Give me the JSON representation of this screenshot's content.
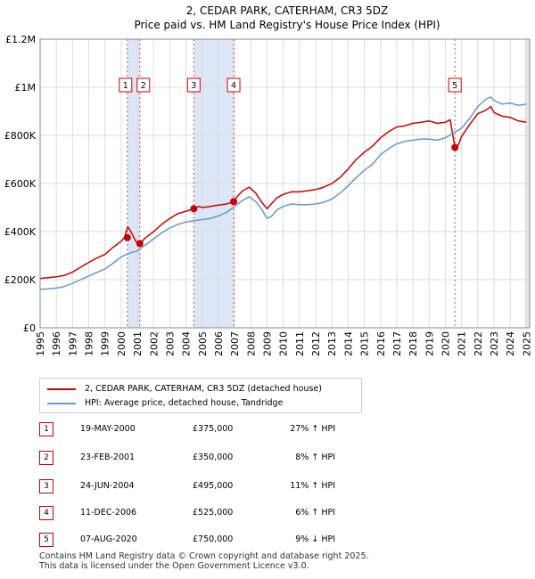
{
  "chart_data": {
    "type": "line",
    "title": "2, CEDAR PARK, CATERHAM, CR3 5DZ",
    "subtitle": "Price paid vs. HM Land Registry's House Price Index (HPI)",
    "xlim": [
      1995,
      2025.2
    ],
    "ylim": [
      0,
      1200000
    ],
    "x_ticks": [
      1995,
      1996,
      1997,
      1998,
      1999,
      2000,
      2001,
      2002,
      2003,
      2004,
      2005,
      2006,
      2007,
      2008,
      2009,
      2010,
      2011,
      2012,
      2013,
      2014,
      2015,
      2016,
      2017,
      2018,
      2019,
      2020,
      2021,
      2022,
      2023,
      2024,
      2025
    ],
    "y_ticks": [
      {
        "value": 0,
        "label": "£0"
      },
      {
        "value": 200000,
        "label": "£200K"
      },
      {
        "value": 400000,
        "label": "£400K"
      },
      {
        "value": 600000,
        "label": "£600K"
      },
      {
        "value": 800000,
        "label": "£800K"
      },
      {
        "value": 1000000,
        "label": "£1M"
      },
      {
        "value": 1200000,
        "label": "£1.2M"
      }
    ],
    "grid": true,
    "legend_position": "bottom",
    "colors": {
      "property": "#cc0000",
      "hpi": "#6699cc",
      "shade": "#dce6f7",
      "marker": "#cc0000"
    },
    "series": [
      {
        "name": "2, CEDAR PARK, CATERHAM, CR3 5DZ (detached house)",
        "key": "property",
        "x": [
          1995,
          1995.5,
          1996,
          1996.5,
          1997,
          1997.5,
          1998,
          1998.5,
          1999,
          1999.5,
          2000,
          2000.2,
          2000.4,
          2000.6,
          2000.9,
          2001.0,
          2001.15,
          2001.5,
          2002,
          2002.5,
          2003,
          2003.5,
          2004,
          2004.48,
          2004.8,
          2005,
          2005.5,
          2006,
          2006.5,
          2006.94,
          2007.2,
          2007.5,
          2007.9,
          2008.3,
          2008.7,
          2009.0,
          2009.2,
          2009.6,
          2010,
          2010.5,
          2011,
          2011.5,
          2012,
          2012.5,
          2013,
          2013.5,
          2014,
          2014.5,
          2015,
          2015.5,
          2016,
          2016.5,
          2017,
          2017.5,
          2018,
          2018.5,
          2019,
          2019.5,
          2020,
          2020.3,
          2020.59,
          2020.8,
          2021,
          2021.5,
          2022,
          2022.5,
          2022.8,
          2023,
          2023.5,
          2024,
          2024.5,
          2025
        ],
        "values": [
          205000,
          208000,
          212000,
          218000,
          232000,
          252000,
          272000,
          290000,
          305000,
          335000,
          360000,
          375000,
          420000,
          400000,
          360000,
          350000,
          350000,
          375000,
          400000,
          430000,
          455000,
          475000,
          485000,
          495000,
          505000,
          500000,
          505000,
          510000,
          515000,
          525000,
          550000,
          570000,
          585000,
          560000,
          520000,
          495000,
          510000,
          540000,
          555000,
          565000,
          565000,
          570000,
          575000,
          585000,
          600000,
          625000,
          660000,
          700000,
          730000,
          755000,
          790000,
          815000,
          835000,
          840000,
          850000,
          855000,
          860000,
          850000,
          855000,
          865000,
          750000,
          760000,
          795000,
          845000,
          890000,
          905000,
          920000,
          895000,
          880000,
          875000,
          860000,
          855000
        ]
      },
      {
        "name": "HPI: Average price, detached house, Tandridge",
        "key": "hpi",
        "x": [
          1995,
          1995.5,
          1996,
          1996.5,
          1997,
          1997.5,
          1998,
          1998.5,
          1999,
          1999.5,
          2000,
          2000.5,
          2001,
          2001.5,
          2002,
          2002.5,
          2003,
          2003.5,
          2004,
          2004.5,
          2005,
          2005.5,
          2006,
          2006.5,
          2007,
          2007.5,
          2007.9,
          2008.3,
          2008.7,
          2009.0,
          2009.3,
          2009.6,
          2010,
          2010.5,
          2011,
          2011.5,
          2012,
          2012.5,
          2013,
          2013.5,
          2014,
          2014.5,
          2015,
          2015.5,
          2016,
          2016.5,
          2017,
          2017.5,
          2018,
          2018.5,
          2019,
          2019.5,
          2020,
          2020.5,
          2021,
          2021.5,
          2022,
          2022.5,
          2022.8,
          2023,
          2023.5,
          2024,
          2024.5,
          2025
        ],
        "values": [
          160000,
          162000,
          165000,
          172000,
          185000,
          200000,
          215000,
          230000,
          245000,
          268000,
          295000,
          310000,
          320000,
          345000,
          370000,
          395000,
          415000,
          430000,
          440000,
          445000,
          450000,
          455000,
          465000,
          480000,
          505000,
          530000,
          545000,
          525000,
          490000,
          455000,
          465000,
          490000,
          505000,
          515000,
          512000,
          512000,
          515000,
          522000,
          535000,
          560000,
          590000,
          625000,
          655000,
          680000,
          720000,
          745000,
          765000,
          775000,
          780000,
          785000,
          785000,
          780000,
          790000,
          810000,
          830000,
          870000,
          920000,
          950000,
          960000,
          945000,
          930000,
          935000,
          925000,
          930000
        ]
      }
    ],
    "sales": [
      {
        "id": "1",
        "x": 2000.38,
        "value": 375000,
        "date": "19-MAY-2000",
        "price": "£375,000",
        "hpi": "27% ↑ HPI"
      },
      {
        "id": "2",
        "x": 2001.15,
        "value": 350000,
        "date": "23-FEB-2001",
        "price": "£350,000",
        "hpi": "8% ↑ HPI"
      },
      {
        "id": "3",
        "x": 2004.48,
        "value": 495000,
        "date": "24-JUN-2004",
        "price": "£495,000",
        "hpi": "11% ↑ HPI"
      },
      {
        "id": "4",
        "x": 2006.94,
        "value": 525000,
        "date": "11-DEC-2006",
        "price": "£525,000",
        "hpi": "6% ↑ HPI"
      },
      {
        "id": "5",
        "x": 2020.59,
        "value": 750000,
        "date": "07-AUG-2020",
        "price": "£750,000",
        "hpi": "9% ↓ HPI"
      }
    ]
  },
  "footer": {
    "line1": "Contains HM Land Registry data © Crown copyright and database right 2025.",
    "line2": "This data is licensed under the Open Government Licence v3.0."
  }
}
